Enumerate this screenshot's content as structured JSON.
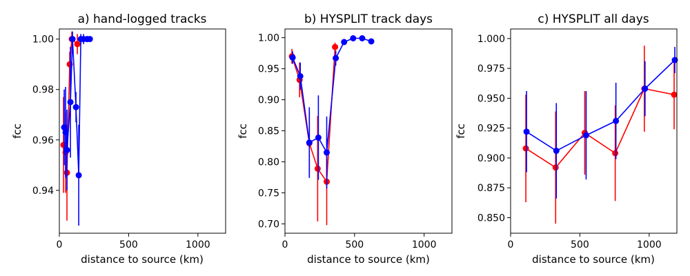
{
  "chart_data": [
    {
      "type": "line",
      "title": "a) hand-logged tracks",
      "xlabel": "distance to source (km)",
      "ylabel": "fcc",
      "xlim": [
        0,
        1200
      ],
      "ylim": [
        0.923,
        1.004
      ],
      "xticks": [
        0,
        500,
        1000
      ],
      "yticks": [
        0.94,
        0.96,
        0.98,
        1.0
      ],
      "ytick_labels": [
        "0.94",
        "0.96",
        "0.98",
        "1.00"
      ],
      "series": [
        {
          "name": "red",
          "color": "#ff0000",
          "x": [
            30,
            45,
            55,
            75,
            90,
            130
          ],
          "y": [
            0.958,
            0.955,
            0.947,
            0.99,
            1.0,
            0.998
          ],
          "yerr": [
            0.019,
            0.016,
            0.019,
            0.005,
            0.003,
            0.004
          ]
        },
        {
          "name": "blue",
          "color": "#0000ff",
          "x": [
            35,
            45,
            55,
            80,
            95,
            120,
            140,
            155,
            175,
            200,
            220
          ],
          "y": [
            0.965,
            0.963,
            0.956,
            0.975,
            1.0,
            0.973,
            0.946,
            1.0,
            1.0,
            1.0,
            1.0
          ],
          "yerr": [
            0.015,
            0.018,
            0.016,
            0.022,
            0.003,
            0.006,
            0.02,
            0.002,
            0.002,
            0.001,
            0.001
          ]
        }
      ]
    },
    {
      "type": "line",
      "title": "b) HYSPLIT track days",
      "xlabel": "distance to source (km)",
      "ylabel": "fcc",
      "xlim": [
        0,
        1200
      ],
      "ylim": [
        0.685,
        1.014
      ],
      "xticks": [
        0,
        500,
        1000
      ],
      "yticks": [
        0.7,
        0.75,
        0.8,
        0.85,
        0.9,
        0.95,
        1.0
      ],
      "ytick_labels": [
        "0.70",
        "0.75",
        "0.80",
        "0.85",
        "0.90",
        "0.95",
        "1.00"
      ],
      "series": [
        {
          "name": "red",
          "color": "#ff0000",
          "x": [
            50,
            105,
            175,
            235,
            300,
            360
          ],
          "y": [
            0.97,
            0.932,
            0.83,
            0.789,
            0.768,
            0.985
          ],
          "yerr": [
            0.012,
            0.028,
            0.05,
            0.085,
            0.07,
            0.007
          ]
        },
        {
          "name": "blue",
          "color": "#0000ff",
          "x": [
            55,
            110,
            175,
            240,
            300,
            365,
            425,
            490,
            555,
            620
          ],
          "y": [
            0.968,
            0.938,
            0.831,
            0.839,
            0.815,
            0.967,
            0.993,
            0.999,
            0.999,
            0.994
          ],
          "yerr": [
            0.01,
            0.022,
            0.057,
            0.068,
            0.058,
            0.012,
            0.003,
            0.001,
            0.001,
            0.002
          ]
        }
      ]
    },
    {
      "type": "line",
      "title": "c) HYSPLIT all days",
      "xlabel": "distance to source (km)",
      "ylabel": "fcc",
      "xlim": [
        0,
        1200
      ],
      "ylim": [
        0.837,
        1.008
      ],
      "xticks": [
        0,
        500,
        1000
      ],
      "yticks": [
        0.85,
        0.875,
        0.9,
        0.925,
        0.95,
        0.975,
        1.0
      ],
      "ytick_labels": [
        "0.850",
        "0.875",
        "0.900",
        "0.925",
        "0.950",
        "0.975",
        "1.000"
      ],
      "series": [
        {
          "name": "red",
          "color": "#ff0000",
          "x": [
            110,
            325,
            535,
            755,
            965,
            1180
          ],
          "y": [
            0.908,
            0.892,
            0.921,
            0.904,
            0.958,
            0.953
          ],
          "yerr": [
            0.045,
            0.047,
            0.035,
            0.04,
            0.036,
            0.029
          ]
        },
        {
          "name": "blue",
          "color": "#0000ff",
          "x": [
            115,
            330,
            545,
            760,
            970,
            1185
          ],
          "y": [
            0.922,
            0.906,
            0.919,
            0.931,
            0.958,
            0.982
          ],
          "yerr": [
            0.034,
            0.04,
            0.037,
            0.032,
            0.023,
            0.011
          ]
        }
      ]
    }
  ]
}
